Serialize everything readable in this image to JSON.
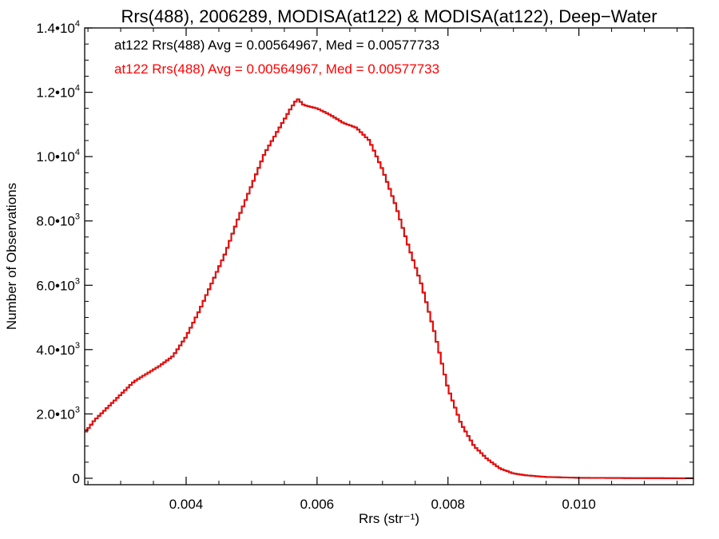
{
  "chart_data": {
    "type": "line",
    "title": "Rrs(488), 2006289, MODISA(at122) & MODISA(at122), Deep−Water",
    "xlabel": "Rrs (str⁻¹)",
    "ylabel": "Number of Observations",
    "xlim": [
      0.00245,
      0.01175
    ],
    "ylim": [
      -200,
      14000
    ],
    "grid": false,
    "legend_position": "top-left",
    "x_ticks": [
      {
        "value": 0.004,
        "label": "0.004"
      },
      {
        "value": 0.006,
        "label": "0.006"
      },
      {
        "value": 0.008,
        "label": "0.008"
      },
      {
        "value": 0.01,
        "label": "0.010"
      }
    ],
    "y_ticks": [
      {
        "value": 0,
        "mantissa": "0",
        "exp": ""
      },
      {
        "value": 2000,
        "mantissa": "2.0•10",
        "exp": "3"
      },
      {
        "value": 4000,
        "mantissa": "4.0•10",
        "exp": "3"
      },
      {
        "value": 6000,
        "mantissa": "6.0•10",
        "exp": "3"
      },
      {
        "value": 8000,
        "mantissa": "8.0•10",
        "exp": "3"
      },
      {
        "value": 10000,
        "mantissa": "1.0•10",
        "exp": "4"
      },
      {
        "value": 12000,
        "mantissa": "1.2•10",
        "exp": "4"
      },
      {
        "value": 14000,
        "mantissa": "1.4•10",
        "exp": "4"
      }
    ],
    "annotations": [
      {
        "text": "at122 Rrs(488) Avg = 0.00564967, Med = 0.00577733",
        "color": "#000000"
      },
      {
        "text": "at122 Rrs(488) Avg = 0.00564967, Med = 0.00577733",
        "color": "#ff0000"
      }
    ],
    "series": [
      {
        "color": "#000000",
        "x": [
          0.00245,
          0.0026,
          0.0028,
          0.003,
          0.0032,
          0.0034,
          0.0036,
          0.0038,
          0.004,
          0.0042,
          0.0044,
          0.0046,
          0.0048,
          0.005,
          0.0052,
          0.0054,
          0.0056,
          0.0057,
          0.0058,
          0.006,
          0.0062,
          0.0064,
          0.0066,
          0.0068,
          0.007,
          0.0072,
          0.0074,
          0.0076,
          0.0078,
          0.008,
          0.0082,
          0.0084,
          0.0086,
          0.0088,
          0.009,
          0.0092,
          0.0095,
          0.01,
          0.0105,
          0.011,
          0.01175
        ],
        "y": [
          1400,
          1800,
          2200,
          2600,
          3000,
          3250,
          3500,
          3800,
          4400,
          5200,
          6100,
          7000,
          8100,
          9100,
          10100,
          10800,
          11500,
          11800,
          11600,
          11500,
          11300,
          11050,
          10900,
          10500,
          9600,
          8500,
          7200,
          6000,
          4500,
          2800,
          1700,
          1000,
          600,
          300,
          150,
          90,
          40,
          15,
          8,
          4,
          2
        ]
      },
      {
        "color": "#ff0000",
        "x": [
          0.00245,
          0.0026,
          0.0028,
          0.003,
          0.0032,
          0.0034,
          0.0036,
          0.0038,
          0.004,
          0.0042,
          0.0044,
          0.0046,
          0.0048,
          0.005,
          0.0052,
          0.0054,
          0.0056,
          0.0057,
          0.0058,
          0.006,
          0.0062,
          0.0064,
          0.0066,
          0.0068,
          0.007,
          0.0072,
          0.0074,
          0.0076,
          0.0078,
          0.008,
          0.0082,
          0.0084,
          0.0086,
          0.0088,
          0.009,
          0.0092,
          0.0095,
          0.01,
          0.0105,
          0.011,
          0.01175
        ],
        "y": [
          1400,
          1800,
          2200,
          2600,
          3000,
          3250,
          3500,
          3800,
          4400,
          5200,
          6100,
          7000,
          8100,
          9100,
          10100,
          10800,
          11500,
          11800,
          11600,
          11500,
          11300,
          11050,
          10900,
          10500,
          9600,
          8500,
          7200,
          6000,
          4500,
          2800,
          1700,
          1000,
          600,
          300,
          150,
          90,
          40,
          15,
          8,
          4,
          2
        ]
      }
    ]
  }
}
